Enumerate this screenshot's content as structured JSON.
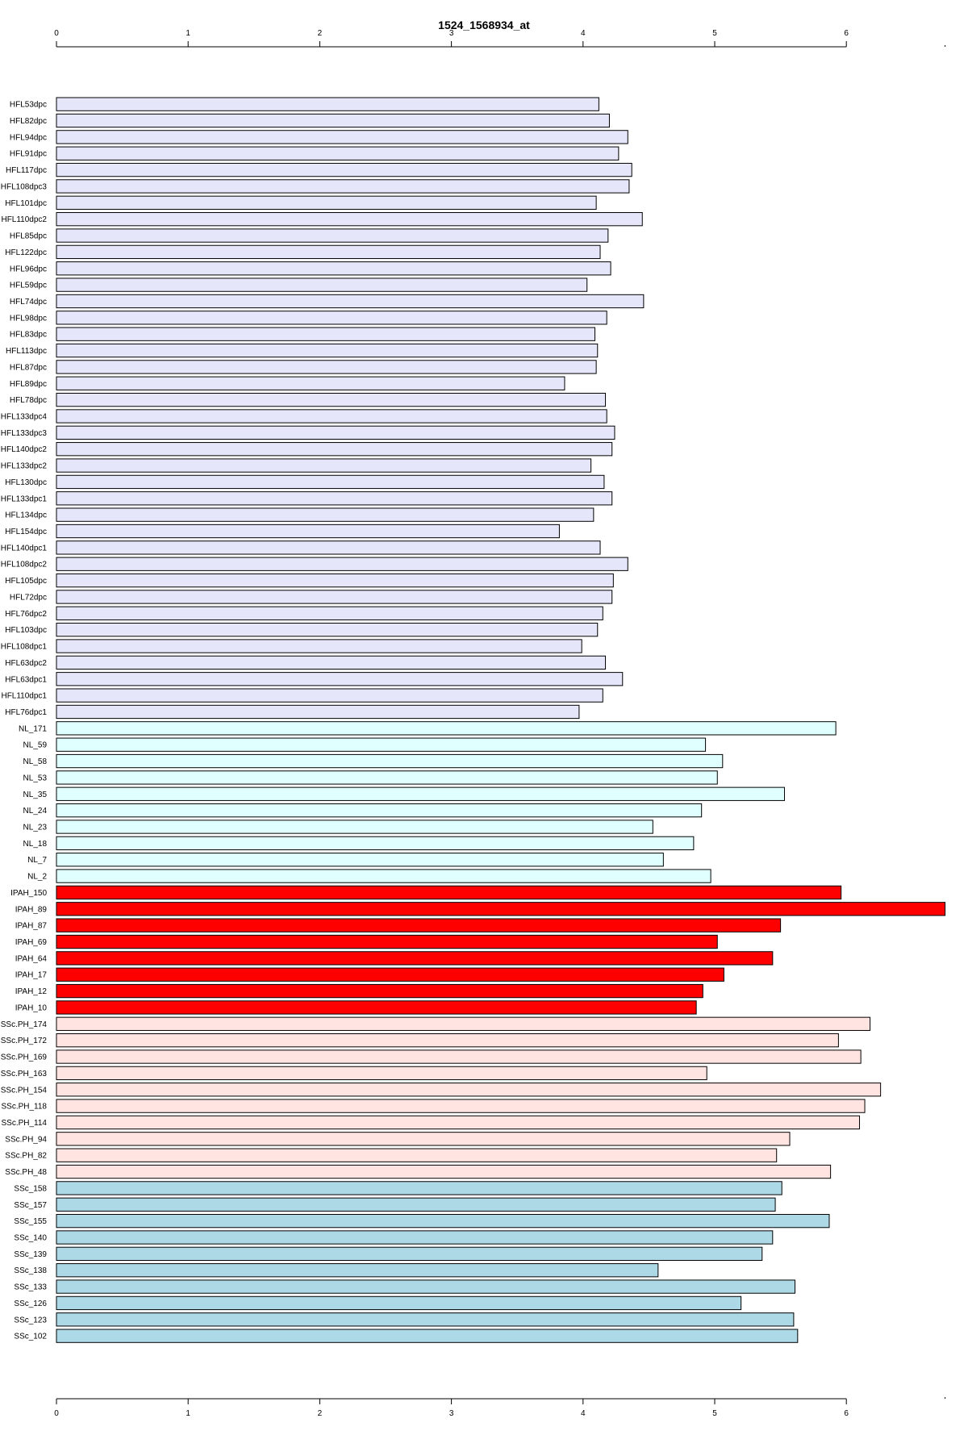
{
  "chart_data": {
    "type": "bar",
    "orientation": "horizontal",
    "title": "1524_1568934_at",
    "xlabel": "",
    "ylabel": "",
    "xlim": [
      0,
      6.75
    ],
    "xticks": [
      "0",
      "1",
      "2",
      "3",
      "4",
      "5",
      "6"
    ],
    "axes": [
      "top",
      "bottom"
    ],
    "grid": false,
    "legend": "none",
    "groups": [
      {
        "color": "#e6e6fa",
        "categories": [
          "HFL53dpc",
          "HFL82dpc",
          "HFL94dpc",
          "HFL91dpc",
          "HFL117dpc",
          "HFL108dpc3",
          "HFL101dpc",
          "HFL110dpc2",
          "HFL85dpc",
          "HFL122dpc",
          "HFL96dpc",
          "HFL59dpc",
          "HFL74dpc",
          "HFL98dpc",
          "HFL83dpc",
          "HFL113dpc",
          "HFL87dpc",
          "HFL89dpc",
          "HFL78dpc",
          "HFL133dpc4",
          "HFL133dpc3",
          "HFL140dpc2",
          "HFL133dpc2",
          "HFL130dpc",
          "HFL133dpc1",
          "HFL134dpc",
          "HFL154dpc",
          "HFL140dpc1",
          "HFL108dpc2",
          "HFL105dpc",
          "HFL72dpc",
          "HFL76dpc2",
          "HFL103dpc",
          "HFL108dpc1",
          "HFL63dpc2",
          "HFL63dpc1",
          "HFL110dpc1",
          "HFL76dpc1"
        ],
        "values": [
          4.12,
          4.2,
          4.34,
          4.27,
          4.37,
          4.35,
          4.1,
          4.45,
          4.19,
          4.13,
          4.21,
          4.03,
          4.46,
          4.18,
          4.09,
          4.11,
          4.1,
          3.86,
          4.17,
          4.18,
          4.24,
          4.22,
          4.06,
          4.16,
          4.22,
          4.08,
          3.82,
          4.13,
          4.34,
          4.23,
          4.22,
          4.15,
          4.11,
          3.99,
          4.17,
          4.3,
          4.15,
          3.97
        ]
      },
      {
        "color": "#e0ffff",
        "categories": [
          "NL_171",
          "NL_59",
          "NL_58",
          "NL_53",
          "NL_35",
          "NL_24",
          "NL_23",
          "NL_18",
          "NL_7",
          "NL_2"
        ],
        "values": [
          5.92,
          4.93,
          5.06,
          5.02,
          5.53,
          4.9,
          4.53,
          4.84,
          4.61,
          4.97
        ]
      },
      {
        "color": "#ff0000",
        "categories": [
          "IPAH_150",
          "IPAH_89",
          "IPAH_87",
          "IPAH_69",
          "IPAH_64",
          "IPAH_17",
          "IPAH_12",
          "IPAH_10"
        ],
        "values": [
          5.96,
          6.75,
          5.5,
          5.02,
          5.44,
          5.07,
          4.91,
          4.86
        ]
      },
      {
        "color": "#ffe4e1",
        "categories": [
          "SSc.PH_174",
          "SSc.PH_172",
          "SSc.PH_169",
          "SSc.PH_163",
          "SSc.PH_154",
          "SSc.PH_118",
          "SSc.PH_114",
          "SSc.PH_94",
          "SSc.PH_82",
          "SSc.PH_48"
        ],
        "values": [
          6.18,
          5.94,
          6.11,
          4.94,
          6.26,
          6.14,
          6.1,
          5.57,
          5.47,
          5.88
        ]
      },
      {
        "color": "#add8e6",
        "categories": [
          "SSc_158",
          "SSc_157",
          "SSc_155",
          "SSc_140",
          "SSc_139",
          "SSc_138",
          "SSc_133",
          "SSc_126",
          "SSc_123",
          "SSc_102"
        ],
        "values": [
          5.51,
          5.46,
          5.87,
          5.44,
          5.36,
          4.57,
          5.61,
          5.2,
          5.6,
          5.63
        ]
      }
    ]
  }
}
